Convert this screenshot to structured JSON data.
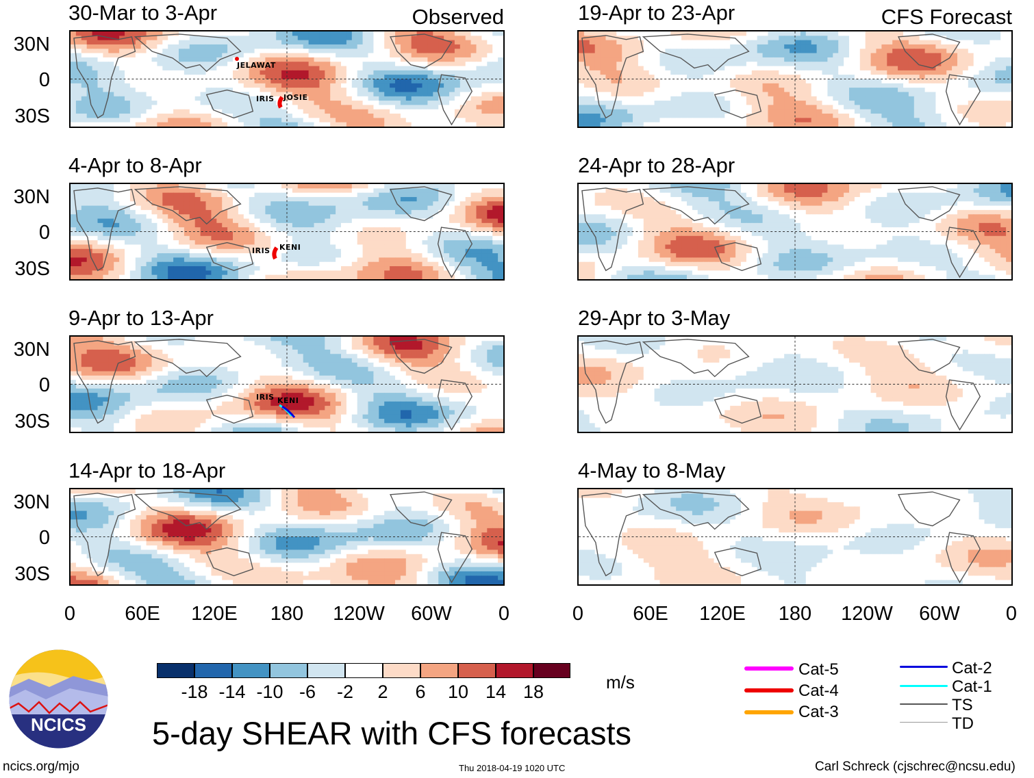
{
  "title": "5-day SHEAR with CFS forecasts",
  "observed_label": "Observed",
  "forecast_label": "CFS Forecast",
  "panels": [
    {
      "label": "30-Mar to 3-Apr",
      "kind": "observed",
      "storms": [
        "JELAWAT",
        "IRIS",
        "JOSIE"
      ]
    },
    {
      "label": "4-Apr to 8-Apr",
      "kind": "observed",
      "storms": [
        "IRIS",
        "KENI"
      ]
    },
    {
      "label": "9-Apr to 13-Apr",
      "kind": "observed",
      "storms": [
        "IRIS",
        "KENI"
      ]
    },
    {
      "label": "14-Apr to 18-Apr",
      "kind": "observed",
      "storms": []
    },
    {
      "label": "19-Apr to 23-Apr",
      "kind": "forecast",
      "storms": []
    },
    {
      "label": "24-Apr to 28-Apr",
      "kind": "forecast",
      "storms": []
    },
    {
      "label": "29-Apr to 3-May",
      "kind": "forecast",
      "storms": []
    },
    {
      "label": "4-May to 8-May",
      "kind": "forecast",
      "storms": []
    }
  ],
  "y_axis_labels": [
    "30N",
    "0",
    "30S"
  ],
  "x_axis_labels": [
    "0",
    "60E",
    "120E",
    "180",
    "120W",
    "60W",
    "0"
  ],
  "colorbar": {
    "units": "m/s",
    "tick_labels": [
      "-18",
      "-14",
      "-10",
      "-6",
      "-2",
      "2",
      "6",
      "10",
      "14",
      "18"
    ],
    "colors": [
      "#08306b",
      "#2166ac",
      "#4393c3",
      "#92c5de",
      "#d1e5f0",
      "#ffffff",
      "#fddbc7",
      "#f4a582",
      "#d6604d",
      "#b2182b",
      "#67001f"
    ]
  },
  "track_legend": [
    {
      "label": "Cat-5",
      "color": "#ff00ff"
    },
    {
      "label": "Cat-4",
      "color": "#ee0000"
    },
    {
      "label": "Cat-3",
      "color": "#ffa500"
    },
    {
      "label": "Cat-2",
      "color": "#0000dd"
    },
    {
      "label": "Cat-1",
      "color": "#00ffff"
    },
    {
      "label": "TS",
      "color": "#555555"
    },
    {
      "label": "TD",
      "color": "#999999"
    }
  ],
  "logo_text": "NCICS",
  "footer": {
    "website": "ncics.org/mjo",
    "timestamp": "Thu 2018-04-19 1020 UTC",
    "author": "Carl Schreck (cjschrec@ncsu.edu)"
  }
}
